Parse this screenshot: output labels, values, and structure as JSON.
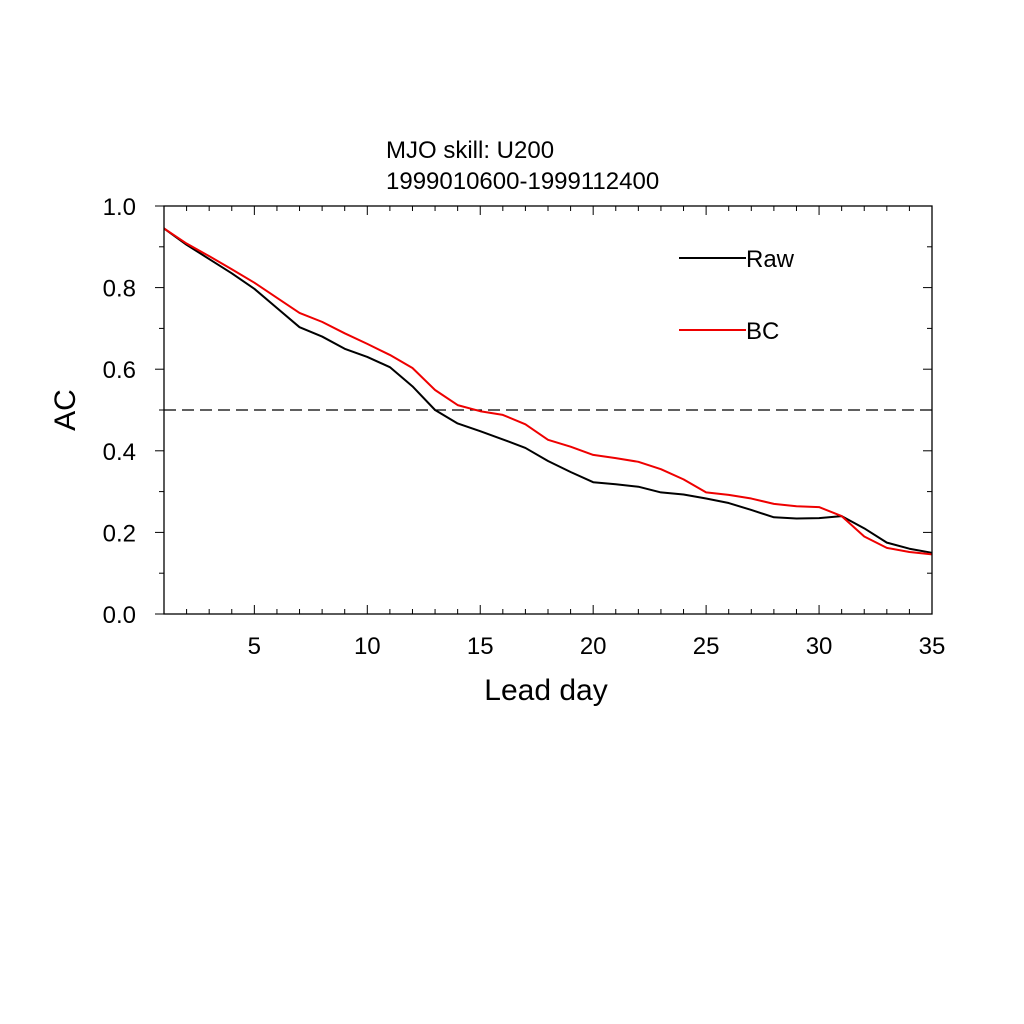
{
  "chart_data": {
    "type": "line",
    "title": "MJO skill: U200",
    "subtitle": "1999010600-1999112400",
    "xlabel": "Lead day",
    "ylabel": "AC",
    "xlim": [
      1,
      35
    ],
    "ylim": [
      0.0,
      1.0
    ],
    "xticks": [
      5,
      10,
      15,
      20,
      25,
      30,
      35
    ],
    "yticks": [
      0.0,
      0.2,
      0.4,
      0.6,
      0.8,
      1.0
    ],
    "ytick_labels": [
      "0.0",
      "0.2",
      "0.4",
      "0.6",
      "0.8",
      "1.0"
    ],
    "x_minor_step": 1,
    "y_minor_step": 0.1,
    "grid": false,
    "legend_position": "top-right",
    "reference_line": {
      "y": 0.5,
      "style": "dashed",
      "color": "#000000"
    },
    "x": [
      1,
      2,
      3,
      4,
      5,
      6,
      7,
      8,
      9,
      10,
      11,
      12,
      13,
      14,
      15,
      16,
      17,
      18,
      19,
      20,
      21,
      22,
      23,
      24,
      25,
      26,
      27,
      28,
      29,
      30,
      31,
      32,
      33,
      34,
      35
    ],
    "series": [
      {
        "name": "Raw",
        "color": "#000000",
        "values": [
          0.945,
          0.905,
          0.87,
          0.835,
          0.797,
          0.75,
          0.703,
          0.68,
          0.65,
          0.63,
          0.605,
          0.558,
          0.5,
          0.467,
          0.448,
          0.428,
          0.407,
          0.375,
          0.348,
          0.323,
          0.318,
          0.312,
          0.298,
          0.293,
          0.283,
          0.272,
          0.255,
          0.237,
          0.234,
          0.235,
          0.24,
          0.21,
          0.175,
          0.16,
          0.15
        ]
      },
      {
        "name": "BC",
        "color": "#ee0000",
        "values": [
          0.945,
          0.908,
          0.877,
          0.845,
          0.812,
          0.775,
          0.738,
          0.716,
          0.688,
          0.662,
          0.635,
          0.603,
          0.549,
          0.512,
          0.497,
          0.488,
          0.465,
          0.427,
          0.41,
          0.39,
          0.382,
          0.373,
          0.355,
          0.33,
          0.298,
          0.292,
          0.283,
          0.27,
          0.264,
          0.262,
          0.24,
          0.19,
          0.162,
          0.152,
          0.146
        ]
      }
    ]
  }
}
